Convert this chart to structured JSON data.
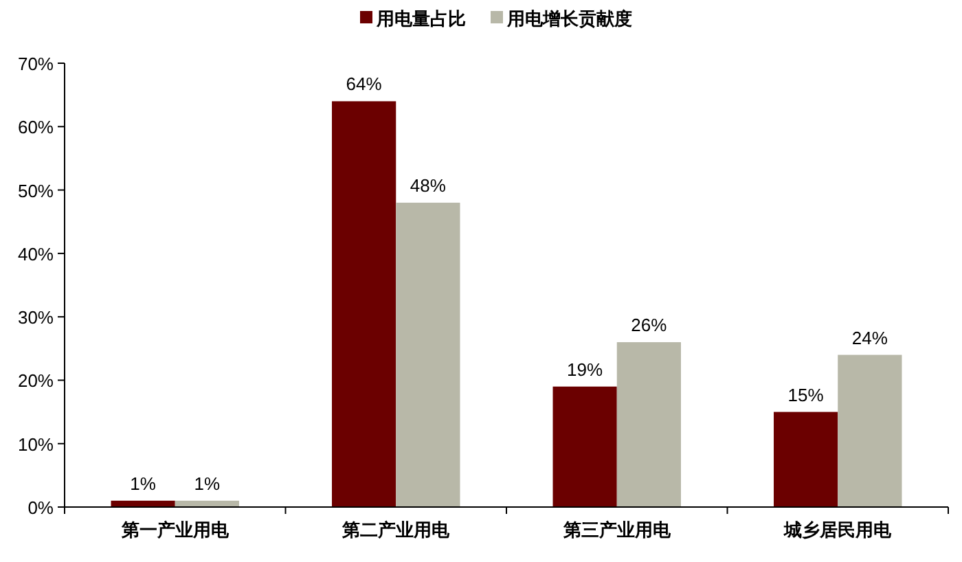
{
  "chart_data": {
    "type": "bar",
    "categories": [
      "第一产业用电",
      "第二产业用电",
      "第三产业用电",
      "城乡居民用电"
    ],
    "series": [
      {
        "name": "用电量占比",
        "color": "#6b0000",
        "values": [
          1,
          64,
          19,
          15
        ],
        "value_labels": [
          "1%",
          "64%",
          "19%",
          "15%"
        ]
      },
      {
        "name": "用电增长贡献度",
        "color": "#b8b8a8",
        "values": [
          1,
          48,
          26,
          24
        ],
        "value_labels": [
          "1%",
          "48%",
          "26%",
          "24%"
        ]
      }
    ],
    "ylim": [
      0,
      70
    ],
    "yticks": [
      {
        "value": 0,
        "label": "0%"
      },
      {
        "value": 10,
        "label": "10%"
      },
      {
        "value": 20,
        "label": "20%"
      },
      {
        "value": 30,
        "label": "30%"
      },
      {
        "value": 40,
        "label": "40%"
      },
      {
        "value": 50,
        "label": "50%"
      },
      {
        "value": 60,
        "label": "60%"
      },
      {
        "value": 70,
        "label": "70%"
      }
    ],
    "legend": "top",
    "grid": false
  }
}
